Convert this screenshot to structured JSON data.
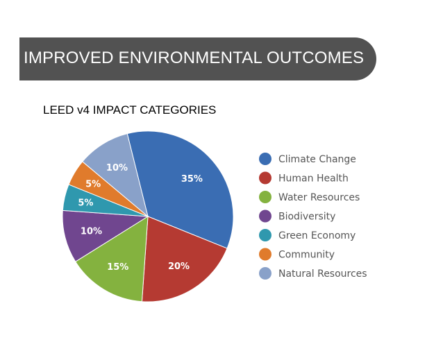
{
  "header": {
    "title": "IMPROVED ENVIRONMENTAL OUTCOMES",
    "subtitle": "LEED v4 IMPACT CATEGORIES"
  },
  "chart_data": {
    "type": "pie",
    "title": "LEED v4 IMPACT CATEGORIES",
    "categories": [
      "Climate Change",
      "Human Health",
      "Water Resources",
      "Biodiversity",
      "Green Economy",
      "Community",
      "Natural Resources"
    ],
    "values": [
      35,
      20,
      15,
      10,
      5,
      5,
      10
    ],
    "labels": [
      "35%",
      "20%",
      "15%",
      "10%",
      "5%",
      "5%",
      "10%"
    ],
    "colors": [
      "#3a6db3",
      "#b53a32",
      "#84b23f",
      "#70468f",
      "#2f98ae",
      "#e07b2c",
      "#89a1c9"
    ],
    "legend_position": "right"
  }
}
